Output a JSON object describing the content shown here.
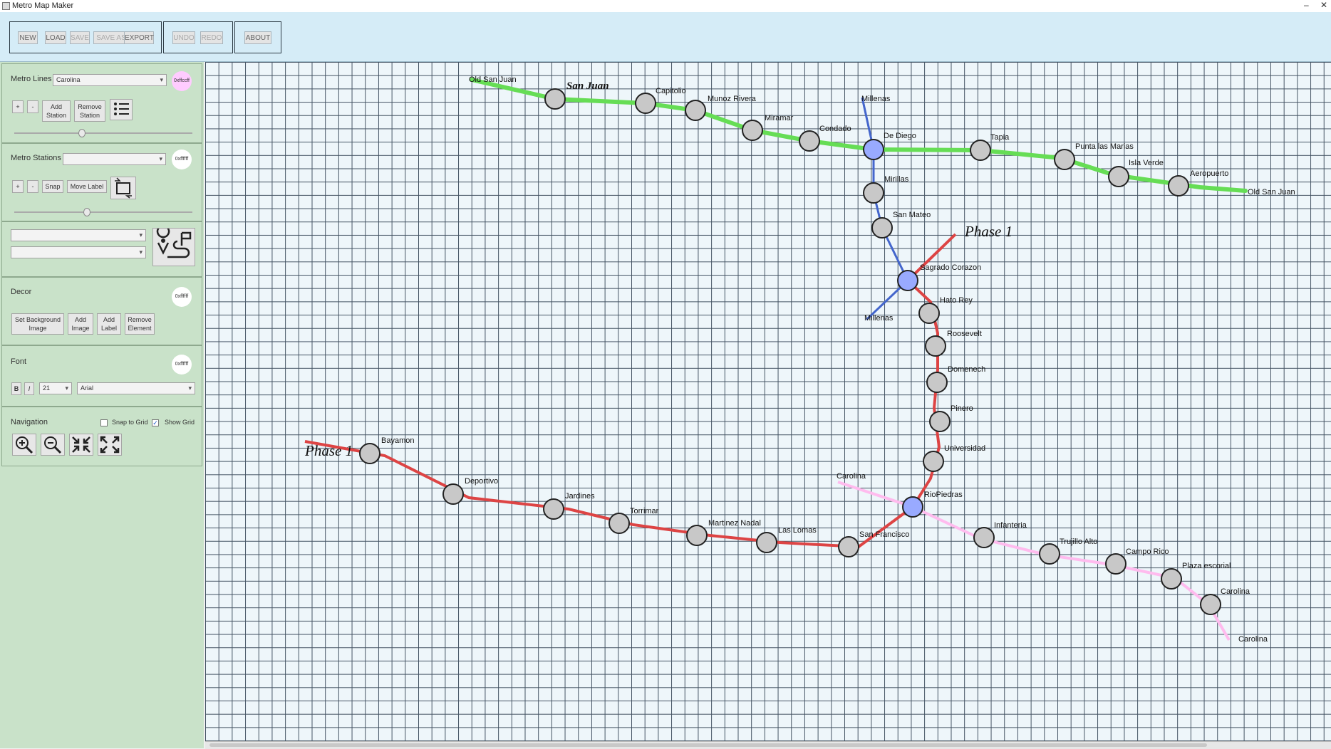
{
  "window": {
    "title": "Metro Map Maker",
    "minimize": "–",
    "close": "✕"
  },
  "toolbar": {
    "new": "NEW",
    "load": "LOAD",
    "save": "SAVE",
    "save_as": "SAVE AS",
    "export": "EXPORT",
    "undo": "UNDO",
    "redo": "REDO",
    "about": "ABOUT"
  },
  "lines_panel": {
    "label": "Metro Lines",
    "selected_line": "Carolina",
    "color_hex": "0xffccff",
    "add_line": "+",
    "remove_line": "-",
    "add_station": "Add Station",
    "remove_station": "Remove Station",
    "list_icon": "list-icon"
  },
  "stations_panel": {
    "label": "Metro Stations",
    "selected_station": "",
    "color_hex": "0xffffff",
    "add": "+",
    "remove": "-",
    "snap": "Snap",
    "move_label": "Move Label",
    "rotate_icon": "rotate-icon"
  },
  "route_panel": {
    "from_station": "",
    "to_station": "",
    "icon": "route-icon"
  },
  "decor_panel": {
    "label": "Decor",
    "color_hex": "0xffffff",
    "set_background": "Set Background Image",
    "add_image": "Add Image",
    "add_label": "Add Label",
    "remove_element": "Remove Element"
  },
  "font_panel": {
    "label": "Font",
    "color_hex": "0xffffff",
    "bold": "B",
    "italic": "I",
    "size": "21",
    "family": "Arial"
  },
  "nav_panel": {
    "label": "Navigation",
    "snap_to_grid": "Snap to Grid",
    "snap_checked": false,
    "show_grid": "Show Grid",
    "grid_checked": true,
    "zoom_in_icon": "zoom-in-icon",
    "zoom_out_icon": "zoom-out-icon",
    "shrink_icon": "shrink-icon",
    "expand_icon": "expand-icon"
  },
  "map": {
    "labels": [
      "San Juan",
      "Phase 1",
      "Phase 1"
    ],
    "lines": [
      {
        "name": "San Juan",
        "color": "#66dd55",
        "ends": [
          "Old San Juan",
          "Old San Juan"
        ],
        "stations": [
          "San Juan",
          "Capitolio",
          "Munoz Rivera",
          "Miramar",
          "Condado",
          "De Diego",
          "Tapia",
          "Punta las Marias",
          "Isla Verde",
          "Aeropuerto"
        ]
      },
      {
        "name": "Millenas",
        "color": "#4466cc",
        "ends": [
          "Millenas",
          "Millenas"
        ],
        "stations": [
          "De Diego",
          "Mirillas",
          "San Mateo",
          "Sagrado Corazon"
        ]
      },
      {
        "name": "Phase 1",
        "color": "#dd4444",
        "ends": [
          "Phase 1",
          "Phase 1"
        ],
        "stations": [
          "Bayamon",
          "Deportivo",
          "Jardines",
          "Torrimar",
          "Martinez Nadal",
          "Las Lomas",
          "San Francisco",
          "RioPiedras",
          "Universidad",
          "Pinero",
          "Domenech",
          "Roosevelt",
          "Hato Rey",
          "Sagrado Corazon"
        ]
      },
      {
        "name": "Carolina",
        "color": "#ffbbee",
        "ends": [
          "Carolina",
          "Carolina"
        ],
        "stations": [
          "RioPiedras",
          "Infanteria",
          "Trujillo Alto",
          "Campo Rico",
          "Plaza escorial",
          "Carolina"
        ]
      }
    ],
    "station_names": {
      "old_san_juan_w": "Old San Juan",
      "capitolio": "Capitolio",
      "munoz": "Munoz Rivera",
      "miramar": "Miramar",
      "condado": "Condado",
      "de_diego": "De Diego",
      "tapia": "Tapia",
      "punta": "Punta las Marias",
      "isla": "Isla Verde",
      "aeropuerto": "Aeropuerto",
      "old_san_juan_e": "Old San Juan",
      "millenas_n": "Millenas",
      "mirillas": "Mirillas",
      "san_mateo": "San Mateo",
      "sagrado": "Sagrado Corazon",
      "millenas_s": "Millenas",
      "hato_rey": "Hato Rey",
      "roosevelt": "Roosevelt",
      "domenech": "Domenech",
      "pinero": "Pinero",
      "universidad": "Universidad",
      "riopiedras": "RioPiedras",
      "carolina_w": "Carolina",
      "infanteria": "Infanteria",
      "trujillo": "Trujillo Alto",
      "campo_rico": "Campo Rico",
      "plaza": "Plaza escorial",
      "carolina_st": "Carolina",
      "carolina_e": "Carolina",
      "bayamon": "Bayamon",
      "deportivo": "Deportivo",
      "jardines": "Jardines",
      "torrimar": "Torrimar",
      "martinez": "Martinez Nadal",
      "las_lomas": "Las Lomas",
      "san_francisco": "San Francisco"
    }
  }
}
